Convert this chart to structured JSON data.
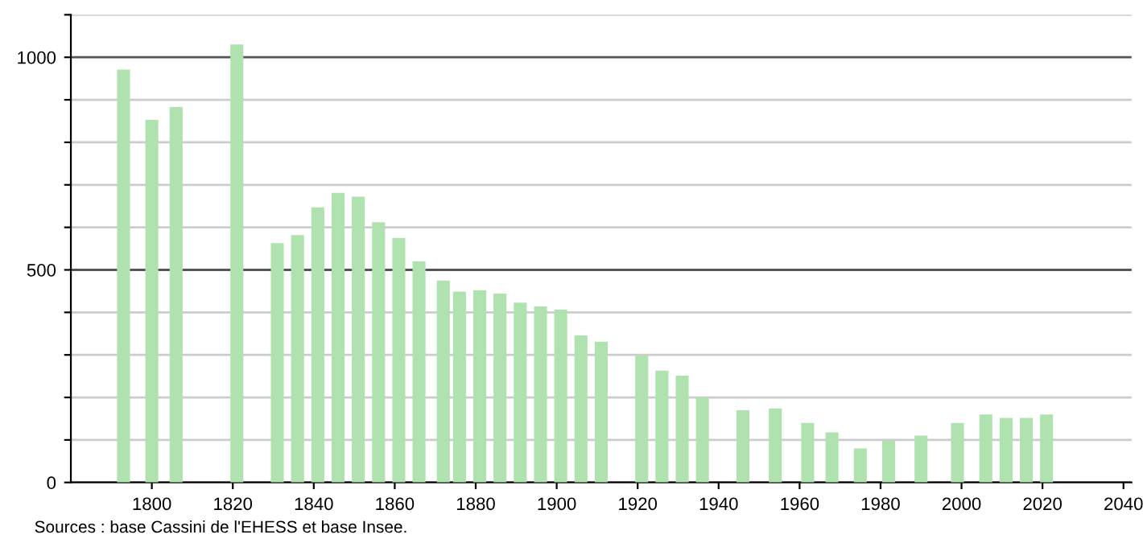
{
  "chart_data": {
    "type": "bar",
    "x": [
      1793,
      1800,
      1806,
      1821,
      1831,
      1836,
      1841,
      1846,
      1851,
      1856,
      1861,
      1866,
      1872,
      1876,
      1881,
      1886,
      1891,
      1896,
      1901,
      1906,
      1911,
      1921,
      1926,
      1931,
      1936,
      1946,
      1954,
      1962,
      1968,
      1975,
      1982,
      1990,
      1999,
      2006,
      2011,
      2016,
      2021
    ],
    "values": [
      971,
      853,
      883,
      1030,
      563,
      582,
      647,
      681,
      672,
      612,
      575,
      520,
      475,
      449,
      452,
      444,
      423,
      414,
      407,
      346,
      331,
      299,
      263,
      251,
      200,
      170,
      174,
      140,
      118,
      80,
      99,
      110,
      140,
      160,
      152,
      152,
      160
    ],
    "color": "#b0e2b0",
    "xlim": [
      1780,
      2042
    ],
    "xticks": [
      1800,
      1820,
      1840,
      1860,
      1880,
      1900,
      1920,
      1940,
      1960,
      1980,
      2000,
      2020,
      2040
    ],
    "ylim": [
      0,
      1100
    ],
    "yticks": [
      0,
      {
        "value": 100,
        "label": null
      },
      {
        "value": 200,
        "label": null
      },
      {
        "value": 300,
        "label": null
      },
      {
        "value": 400,
        "label": null
      },
      500,
      {
        "value": 600,
        "label": null
      },
      {
        "value": 700,
        "label": null
      },
      {
        "value": 800,
        "label": null
      },
      {
        "value": 900,
        "label": null
      },
      1000,
      {
        "value": 1100,
        "label": null
      }
    ],
    "grid": "y",
    "annotations": [
      "Sources : base Cassini de l'EHESS et base Insee."
    ]
  }
}
